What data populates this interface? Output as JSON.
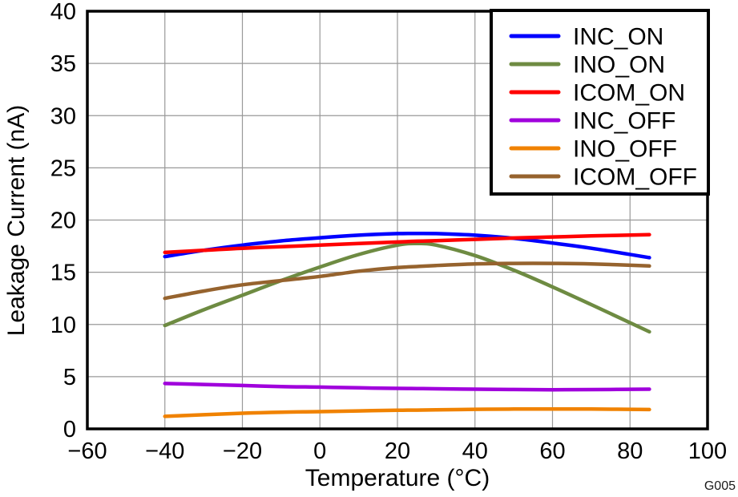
{
  "styles": {
    "background": "#FFFFFF",
    "frame_color": "#000000",
    "grid_color": "#999999",
    "text_color": "#000000",
    "line_width": 4.5,
    "frame_width": 3.5,
    "legend_border_width": 4
  },
  "chart_data": {
    "type": "line",
    "title": "",
    "xlabel": "Temperature (°C)",
    "ylabel": "Leakage Current (nA)",
    "annotation": "G005",
    "xlim": [
      -60,
      100
    ],
    "ylim": [
      0,
      40
    ],
    "xticks": [
      -60,
      -40,
      -20,
      0,
      20,
      40,
      60,
      80,
      100
    ],
    "xtick_labels": [
      "−60",
      "−40",
      "−20",
      "0",
      "20",
      "40",
      "60",
      "80",
      "100"
    ],
    "yticks": [
      0,
      5,
      10,
      15,
      20,
      25,
      30,
      35,
      40
    ],
    "ytick_labels": [
      "0",
      "5",
      "10",
      "15",
      "20",
      "25",
      "30",
      "35",
      "40"
    ],
    "grid": true,
    "legend_position": "top-right",
    "x": [
      -40,
      -30,
      -20,
      -10,
      0,
      10,
      20,
      25,
      30,
      40,
      50,
      60,
      70,
      85
    ],
    "series": [
      {
        "name": "INC_ON",
        "color": "#0000FF",
        "values": [
          16.5,
          17.1,
          17.6,
          18.0,
          18.3,
          18.55,
          18.7,
          18.72,
          18.7,
          18.55,
          18.25,
          17.8,
          17.3,
          16.4
        ]
      },
      {
        "name": "INO_ON",
        "color": "#6E8B42",
        "values": [
          9.9,
          11.4,
          12.8,
          14.2,
          15.5,
          16.7,
          17.6,
          17.75,
          17.6,
          16.6,
          15.2,
          13.6,
          11.9,
          9.3
        ]
      },
      {
        "name": "ICOM_ON",
        "color": "#FF0000",
        "values": [
          16.9,
          17.1,
          17.3,
          17.45,
          17.6,
          17.75,
          17.9,
          17.97,
          18.03,
          18.15,
          18.28,
          18.38,
          18.48,
          18.6
        ]
      },
      {
        "name": "INC_OFF",
        "color": "#A000DC",
        "values": [
          4.35,
          4.25,
          4.15,
          4.05,
          4.0,
          3.93,
          3.88,
          3.86,
          3.84,
          3.8,
          3.77,
          3.75,
          3.76,
          3.8
        ]
      },
      {
        "name": "INO_OFF",
        "color": "#F08200",
        "values": [
          1.2,
          1.35,
          1.5,
          1.6,
          1.65,
          1.72,
          1.78,
          1.8,
          1.82,
          1.87,
          1.9,
          1.9,
          1.9,
          1.85
        ]
      },
      {
        "name": "ICOM_OFF",
        "color": "#96632E",
        "values": [
          12.5,
          13.2,
          13.8,
          14.2,
          14.6,
          15.1,
          15.45,
          15.55,
          15.65,
          15.8,
          15.85,
          15.85,
          15.8,
          15.6
        ]
      }
    ]
  }
}
